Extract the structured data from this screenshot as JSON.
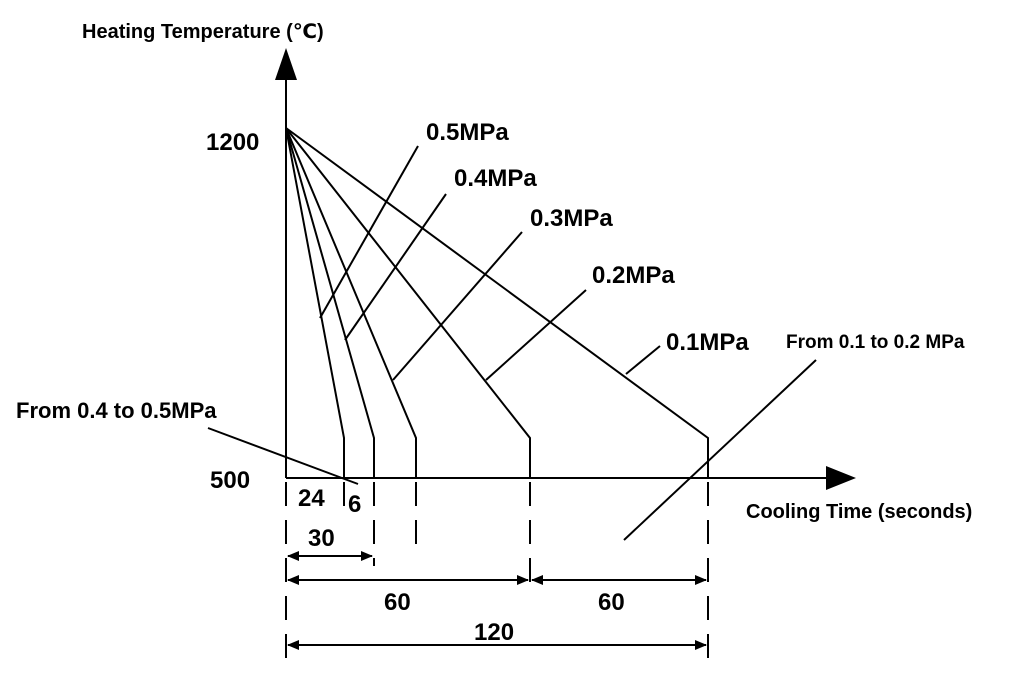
{
  "y_axis": {
    "label": "Heating Temperature (℃)",
    "tick_top": "1200",
    "tick_bottom": "500"
  },
  "x_axis": {
    "label": "Cooling Time (seconds)"
  },
  "pressure_labels": [
    "0.5MPa",
    "0.4MPa",
    "0.3MPa",
    "0.2MPa",
    "0.1MPa"
  ],
  "annotations": {
    "left_range": "From 0.4 to 0.5MPa",
    "right_range": "From 0.1 to 0.2 MPa"
  },
  "dimensions": {
    "d24": "24",
    "d6": "6",
    "d30": "30",
    "d60_left": "60",
    "d60_right": "60",
    "d120": "120"
  },
  "colors": {
    "ink": "#000000",
    "background": "#ffffff"
  }
}
